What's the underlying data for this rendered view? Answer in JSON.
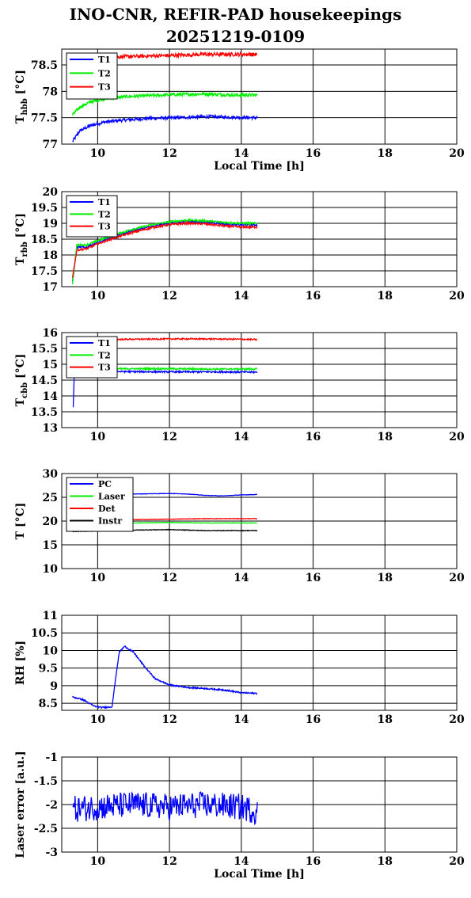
{
  "title": {
    "line1": "INO-CNR, REFIR-PAD housekeepings",
    "line2": "20251219-0109"
  },
  "colors": {
    "T1": "#0000ff",
    "T2": "#00ee00",
    "T3": "#ff0000",
    "black": "#000000"
  },
  "chart_data": [
    {
      "id": "hbb",
      "type": "line",
      "ylabel": "T",
      "ylabel_sub": "hbb",
      "ylabel_tail": " [°C]",
      "xlabel": "Local Time [h]",
      "xlim": [
        9,
        20
      ],
      "ylim": [
        77,
        78.8
      ],
      "xticks": [
        "10",
        "12",
        "14",
        "16",
        "18",
        "20"
      ],
      "yticks": [
        "77",
        "77.5",
        "78",
        "78.5"
      ],
      "legend_position": "top-left",
      "series": [
        {
          "name": "T1",
          "color": "#0000ff",
          "x": [
            9.3,
            9.5,
            9.8,
            10.2,
            10.8,
            11.5,
            12.2,
            13.0,
            13.8,
            14.45
          ],
          "y": [
            77.05,
            77.25,
            77.35,
            77.42,
            77.46,
            77.49,
            77.5,
            77.52,
            77.51,
            77.5
          ],
          "noise": 0.03
        },
        {
          "name": "T2",
          "color": "#00ee00",
          "x": [
            9.3,
            9.5,
            9.8,
            10.2,
            10.8,
            11.5,
            12.2,
            13.0,
            13.8,
            14.45
          ],
          "y": [
            77.55,
            77.7,
            77.8,
            77.86,
            77.9,
            77.92,
            77.94,
            77.95,
            77.93,
            77.93
          ],
          "noise": 0.03
        },
        {
          "name": "T3",
          "color": "#ff0000",
          "x": [
            10.3,
            11.0,
            12.0,
            13.0,
            14.0,
            14.45
          ],
          "y": [
            78.65,
            78.66,
            78.68,
            78.7,
            78.7,
            78.7
          ],
          "noise": 0.035
        }
      ]
    },
    {
      "id": "rbb",
      "type": "line",
      "ylabel": "T",
      "ylabel_sub": "rbb",
      "ylabel_tail": " [°C]",
      "xlim": [
        9,
        20
      ],
      "ylim": [
        17,
        20
      ],
      "xticks": [
        "10",
        "12",
        "14",
        "16",
        "18",
        "20"
      ],
      "yticks": [
        "17",
        "17.5",
        "18",
        "18.5",
        "19",
        "19.5",
        "20"
      ],
      "legend_position": "top-left",
      "series": [
        {
          "name": "T1",
          "color": "#0000ff",
          "x": [
            9.3,
            9.42,
            9.7,
            10.0,
            10.5,
            11.0,
            11.5,
            12.0,
            12.5,
            13.0,
            13.5,
            14.0,
            14.45
          ],
          "y": [
            17.15,
            18.25,
            18.25,
            18.4,
            18.6,
            18.78,
            18.9,
            19.0,
            19.06,
            19.04,
            18.98,
            18.95,
            18.95
          ],
          "noise": 0.03
        },
        {
          "name": "T2",
          "color": "#00ee00",
          "x": [
            9.3,
            9.42,
            9.7,
            10.0,
            10.5,
            11.0,
            11.5,
            12.0,
            12.5,
            13.0,
            13.5,
            14.0,
            14.45
          ],
          "y": [
            17.1,
            18.32,
            18.32,
            18.45,
            18.65,
            18.82,
            18.95,
            19.05,
            19.1,
            19.08,
            19.03,
            19.0,
            19.0
          ],
          "noise": 0.03
        },
        {
          "name": "T3",
          "color": "#ff0000",
          "x": [
            9.3,
            9.42,
            9.7,
            10.0,
            10.5,
            11.0,
            11.5,
            12.0,
            12.5,
            13.0,
            13.5,
            14.0,
            14.45
          ],
          "y": [
            17.3,
            18.15,
            18.2,
            18.35,
            18.55,
            18.72,
            18.86,
            18.96,
            19.0,
            18.98,
            18.92,
            18.88,
            18.88
          ],
          "noise": 0.03
        }
      ]
    },
    {
      "id": "cbb",
      "type": "line",
      "ylabel": "T",
      "ylabel_sub": "cbb",
      "ylabel_tail": " [°C]",
      "xlim": [
        9,
        20
      ],
      "ylim": [
        13,
        16
      ],
      "xticks": [
        "10",
        "12",
        "14",
        "16",
        "18",
        "20"
      ],
      "yticks": [
        "13",
        "13.5",
        "14",
        "14.5",
        "15",
        "15.5",
        "16"
      ],
      "legend_position": "top-left",
      "series": [
        {
          "name": "T1",
          "color": "#0000ff",
          "x": [
            9.32,
            9.34,
            9.36,
            9.5,
            10.5,
            12.0,
            13.5,
            14.45
          ],
          "y": [
            13.65,
            14.5,
            14.75,
            14.76,
            14.77,
            14.76,
            14.76,
            14.75
          ],
          "noise": 0.025
        },
        {
          "name": "T2",
          "color": "#00ee00",
          "x": [
            10.0,
            11.0,
            12.0,
            13.0,
            14.0,
            14.45
          ],
          "y": [
            14.85,
            14.86,
            14.86,
            14.85,
            14.85,
            14.85
          ],
          "noise": 0.025
        },
        {
          "name": "T3",
          "color": "#ff0000",
          "x": [
            10.0,
            11.0,
            12.0,
            13.0,
            14.0,
            14.45
          ],
          "y": [
            15.78,
            15.79,
            15.8,
            15.8,
            15.79,
            15.78
          ],
          "noise": 0.02
        }
      ]
    },
    {
      "id": "temps",
      "type": "line",
      "ylabel": "T [°C]",
      "xlim": [
        9,
        20
      ],
      "ylim": [
        10,
        30
      ],
      "xticks": [
        "10",
        "12",
        "14",
        "16",
        "18",
        "20"
      ],
      "yticks": [
        "10",
        "15",
        "20",
        "25",
        "30"
      ],
      "legend_position": "top-left",
      "series": [
        {
          "name": "PC",
          "color": "#0000ff",
          "x": [
            10.0,
            11.0,
            12.0,
            12.5,
            13.0,
            13.5,
            14.0,
            14.45
          ],
          "y": [
            25.6,
            25.7,
            25.8,
            25.7,
            25.4,
            25.3,
            25.5,
            25.6
          ],
          "noise": 0.04
        },
        {
          "name": "Laser",
          "color": "#00ee00",
          "x": [
            10.0,
            11.0,
            12.0,
            13.0,
            14.0,
            14.45
          ],
          "y": [
            19.5,
            19.6,
            19.7,
            19.6,
            19.6,
            19.6
          ],
          "noise": 0.05
        },
        {
          "name": "Det",
          "color": "#ff0000",
          "x": [
            10.0,
            11.0,
            12.0,
            13.0,
            14.0,
            14.45
          ],
          "y": [
            20.2,
            20.3,
            20.4,
            20.5,
            20.5,
            20.5
          ],
          "noise": 0.05
        },
        {
          "name": "Instr",
          "color": "#000000",
          "x": [
            9.3,
            10.0,
            11.0,
            12.0,
            13.0,
            14.0,
            14.45
          ],
          "y": [
            17.8,
            17.9,
            18.1,
            18.2,
            18.0,
            18.0,
            18.0
          ],
          "noise": 0.06
        }
      ]
    },
    {
      "id": "rh",
      "type": "line",
      "ylabel": "RH [%]",
      "xlim": [
        9,
        20
      ],
      "ylim": [
        8.3,
        11
      ],
      "xticks": [
        "10",
        "12",
        "14",
        "16",
        "18",
        "20"
      ],
      "yticks": [
        "8.5",
        "9",
        "9.5",
        "10",
        "10.5",
        "11"
      ],
      "legend_position": "none",
      "series": [
        {
          "name": "",
          "color": "#0000ff",
          "x": [
            9.3,
            9.6,
            9.9,
            10.1,
            10.4,
            10.5,
            10.6,
            10.75,
            11.0,
            11.3,
            11.6,
            12.0,
            12.5,
            13.0,
            13.5,
            14.0,
            14.45
          ],
          "y": [
            8.68,
            8.6,
            8.42,
            8.38,
            8.4,
            9.2,
            9.95,
            10.12,
            9.95,
            9.55,
            9.2,
            9.02,
            8.95,
            8.92,
            8.88,
            8.8,
            8.78
          ],
          "noise": 0.02
        }
      ]
    },
    {
      "id": "laser",
      "type": "line",
      "ylabel": "Laser error [a.u.]",
      "xlabel": "Local Time [h]",
      "xlim": [
        9,
        20
      ],
      "ylim": [
        -3,
        -1
      ],
      "xticks": [
        "10",
        "12",
        "14",
        "16",
        "18",
        "20"
      ],
      "yticks": [
        "-3",
        "-2.5",
        "-2",
        "-1.5",
        "-1"
      ],
      "legend_position": "none",
      "series": [
        {
          "name": "",
          "color": "#0000ff",
          "x": [
            9.3,
            10.0,
            11.0,
            12.0,
            13.0,
            14.0,
            14.45
          ],
          "y": [
            -2.1,
            -2.05,
            -2.0,
            -2.05,
            -2.0,
            -2.05,
            -2.15
          ],
          "noise": 0.28
        }
      ]
    }
  ]
}
